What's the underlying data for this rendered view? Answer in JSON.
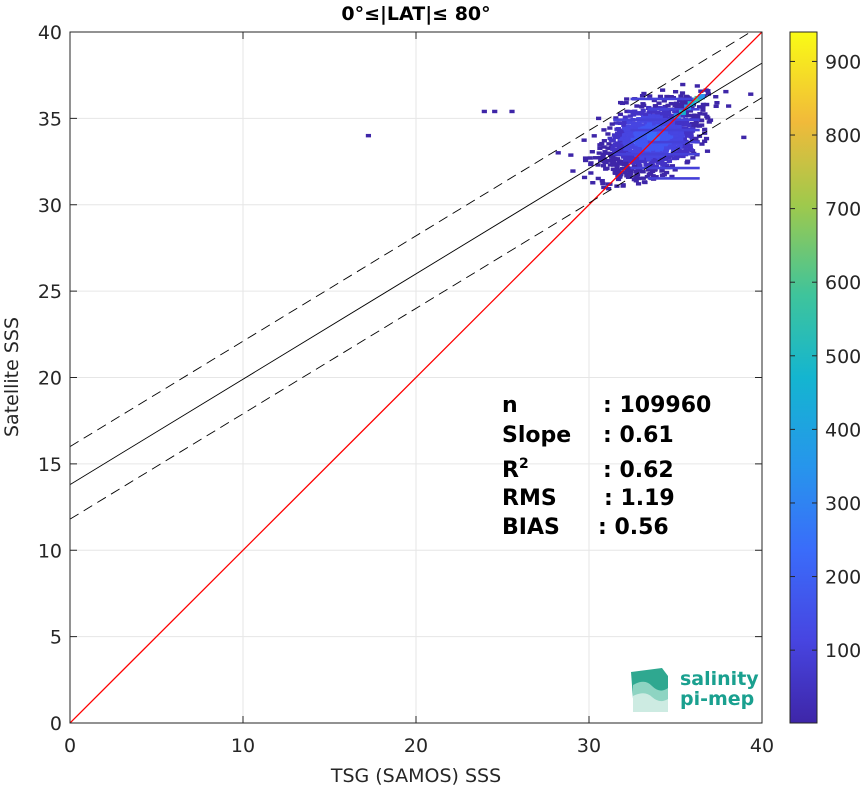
{
  "chart_data": {
    "type": "heatmap",
    "title": "0°≤|LAT|≤ 80°",
    "xlabel": "TSG (SAMOS) SSS",
    "ylabel": "Satellite SSS",
    "xlim": [
      0,
      40
    ],
    "ylim": [
      0,
      40
    ],
    "xticks": [
      "0",
      "10",
      "20",
      "30",
      "40"
    ],
    "yticks": [
      "0",
      "5",
      "10",
      "15",
      "20",
      "25",
      "30",
      "35",
      "40"
    ],
    "grid": true,
    "colorbar": {
      "range": [
        1,
        940
      ],
      "ticks": [
        "100",
        "200",
        "300",
        "400",
        "500",
        "600",
        "700",
        "800",
        "900"
      ],
      "colormap": "parula"
    },
    "lines": [
      {
        "name": "one-to-one",
        "x": [
          0,
          40
        ],
        "y": [
          0,
          40
        ],
        "color": "#ff0000",
        "style": "solid"
      },
      {
        "name": "regression",
        "x": [
          0,
          40
        ],
        "y": [
          13.8,
          38.2
        ],
        "color": "#000000",
        "style": "solid"
      },
      {
        "name": "upper-bound",
        "x": [
          0,
          40
        ],
        "y": [
          16.0,
          40.4
        ],
        "color": "#000000",
        "style": "dashed"
      },
      {
        "name": "lower-bound",
        "x": [
          0,
          40
        ],
        "y": [
          11.8,
          36.2
        ],
        "color": "#000000",
        "style": "dashed"
      }
    ],
    "density_center": {
      "x": 33.5,
      "y": 34.0
    },
    "density_peak": {
      "x": 36.0,
      "y": 36.2
    },
    "stats": [
      {
        "label": "n",
        "value": ": 109960"
      },
      {
        "label": "Slope",
        "value": ": 0.61"
      },
      {
        "label": "R",
        "sup": "2",
        "value": ": 0.62"
      },
      {
        "label": "RMS",
        "value": ": 1.19"
      },
      {
        "label": "BIAS",
        "value": ": 0.56"
      }
    ]
  },
  "logo": {
    "line1": "salinity",
    "line2": "pi-mep"
  }
}
